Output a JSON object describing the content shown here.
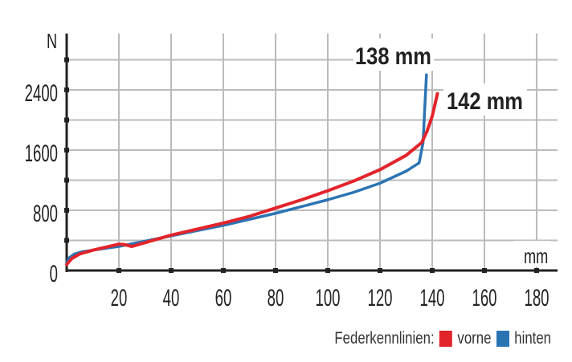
{
  "chart_data": {
    "type": "line",
    "ylabel": "N",
    "xlabel": "mm",
    "xlim": [
      0,
      188
    ],
    "ylim": [
      0,
      3150
    ],
    "xticks": [
      20,
      40,
      60,
      80,
      100,
      120,
      140,
      160,
      180
    ],
    "yticks": [
      0,
      800,
      1600,
      2400
    ],
    "grid": true,
    "legend": {
      "title": "Federkennlinien:",
      "position": "bottom-right"
    },
    "series": [
      {
        "name": "vorne",
        "color": "#e2242b",
        "x": [
          0,
          2,
          5,
          10,
          15,
          20,
          22,
          25,
          30,
          40,
          50,
          60,
          70,
          80,
          90,
          100,
          110,
          120,
          130,
          136,
          138,
          140,
          142
        ],
        "y": [
          80,
          160,
          220,
          270,
          310,
          350,
          345,
          320,
          370,
          470,
          550,
          630,
          720,
          830,
          940,
          1060,
          1190,
          1340,
          1530,
          1700,
          1850,
          2050,
          2350
        ]
      },
      {
        "name": "hinten",
        "color": "#2b74b4",
        "x": [
          0,
          1,
          3,
          6,
          10,
          20,
          30,
          40,
          50,
          60,
          70,
          80,
          90,
          100,
          110,
          120,
          130,
          135,
          136.5,
          137.2,
          137.8
        ],
        "y": [
          100,
          170,
          220,
          250,
          270,
          320,
          390,
          460,
          530,
          600,
          680,
          760,
          850,
          940,
          1040,
          1160,
          1320,
          1430,
          1700,
          2200,
          2600
        ]
      }
    ],
    "annotations": [
      {
        "text": "138 mm",
        "series": "hinten"
      },
      {
        "text": "142 mm",
        "series": "vorne"
      }
    ]
  }
}
